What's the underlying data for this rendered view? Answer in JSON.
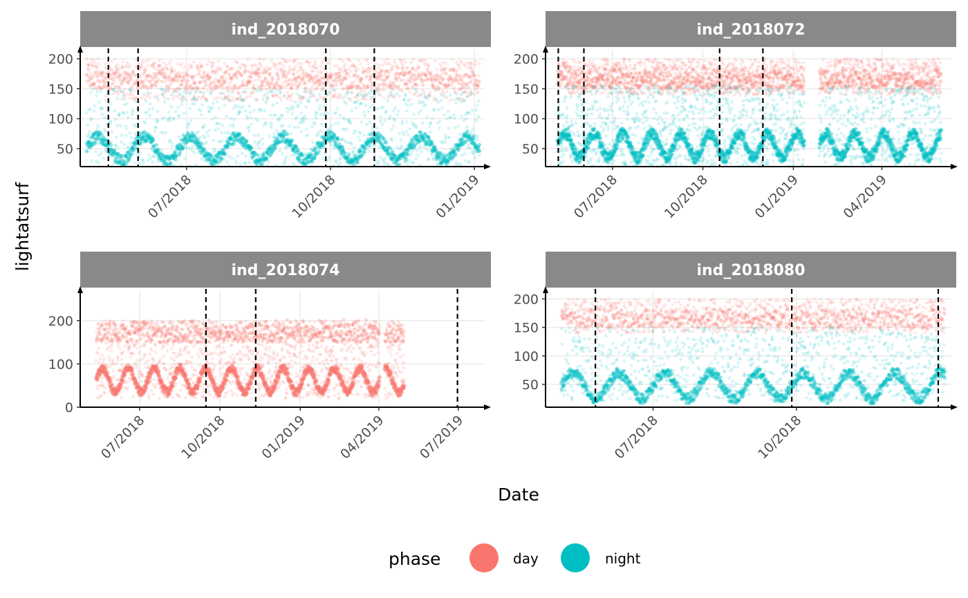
{
  "chart_data": {
    "type": "scatter",
    "xlabel": "Date",
    "ylabel": "lightatsurf",
    "colors": {
      "day": "#F8766D",
      "night": "#00BFC4",
      "strip_bg": "#898989",
      "vline": "#000000",
      "grid": "#ebebeb"
    },
    "legend": {
      "title": "phase",
      "position": "bottom",
      "entries": [
        {
          "key": "day",
          "label": "day"
        },
        {
          "key": "night",
          "label": "night"
        }
      ]
    },
    "panels": [
      {
        "id": "ind_2018070",
        "title": "ind_2018070",
        "xlim": [
          "2018-04-24",
          "2019-01-08"
        ],
        "ylim": [
          20,
          215
        ],
        "x_ticks": [
          "2018-07-01",
          "2018-10-01",
          "2019-01-01"
        ],
        "x_tick_labels": [
          "07/2018",
          "10/2018",
          "01/2019"
        ],
        "y_ticks": [
          50,
          100,
          150,
          200
        ],
        "y_tick_labels": [
          "50",
          "100",
          "150",
          "200"
        ],
        "vlines": [
          "2018-05-12",
          "2018-05-31",
          "2018-09-28",
          "2018-10-29"
        ],
        "series": [
          {
            "phase": "day",
            "start": "2018-04-28",
            "end": "2019-01-04",
            "band": [
              130,
              200
            ],
            "dense_until": "2018-05-05",
            "dense_band": [
              160,
              200
            ]
          },
          {
            "phase": "night",
            "start": "2018-04-28",
            "end": "2019-01-04",
            "band": [
              20,
              150
            ],
            "baseline": [
              30,
              70
            ]
          }
        ]
      },
      {
        "id": "ind_2018072",
        "title": "ind_2018072",
        "xlim": [
          "2018-04-24",
          "2019-06-10"
        ],
        "ylim": [
          20,
          215
        ],
        "x_ticks": [
          "2018-07-01",
          "2018-10-01",
          "2019-01-01",
          "2019-04-01"
        ],
        "x_tick_labels": [
          "07/2018",
          "10/2018",
          "01/2019",
          "04/2019"
        ],
        "y_ticks": [
          50,
          100,
          150,
          200
        ],
        "y_tick_labels": [
          "50",
          "100",
          "150",
          "200"
        ],
        "vlines": [
          "2018-05-07",
          "2018-06-02",
          "2018-10-18",
          "2018-12-01"
        ],
        "gaps": [
          [
            "2019-01-12",
            "2019-01-27"
          ]
        ],
        "series": [
          {
            "phase": "day",
            "start": "2018-05-06",
            "end": "2019-05-31",
            "band": [
              140,
              200
            ],
            "dense_until": "2018-05-15",
            "dense_band": [
              165,
              200
            ]
          },
          {
            "phase": "night",
            "start": "2018-05-06",
            "end": "2019-05-31",
            "band": [
              20,
              155
            ],
            "baseline": [
              35,
              75
            ]
          }
        ]
      },
      {
        "id": "ind_2018074",
        "title": "ind_2018074",
        "xlim": [
          "2018-04-24",
          "2019-08-01"
        ],
        "ylim": [
          0,
          270
        ],
        "x_ticks": [
          "2018-07-01",
          "2018-10-01",
          "2019-01-01",
          "2019-04-01",
          "2019-07-01"
        ],
        "x_tick_labels": [
          "07/2018",
          "10/2018",
          "01/2019",
          "04/2019",
          "07/2019"
        ],
        "y_ticks": [
          0,
          100,
          200
        ],
        "y_tick_labels": [
          "0",
          "100",
          "200"
        ],
        "vlines": [
          "2018-09-15",
          "2018-11-11",
          "2019-06-30"
        ],
        "gaps": [
          [
            "2019-04-02",
            "2019-04-07"
          ]
        ],
        "series": [
          {
            "phase": "day",
            "start": "2018-05-12",
            "end": "2019-04-30",
            "band": [
              20,
              200
            ],
            "top_band": [
              150,
              205
            ],
            "baseline": [
              35,
              90
            ]
          }
        ]
      },
      {
        "id": "ind_2018080",
        "title": "ind_2018080",
        "xlim": [
          "2018-04-23",
          "2019-01-08"
        ],
        "ylim": [
          10,
          215
        ],
        "x_ticks": [
          "2018-07-01",
          "2018-10-01"
        ],
        "x_tick_labels": [
          "07/2018",
          "10/2018"
        ],
        "y_ticks": [
          50,
          100,
          150,
          200
        ],
        "y_tick_labels": [
          "50",
          "100",
          "150",
          "200"
        ],
        "vlines": [
          "2018-05-25",
          "2018-09-28",
          "2018-12-31"
        ],
        "series": [
          {
            "phase": "day",
            "start": "2018-05-03",
            "end": "2019-01-04",
            "band": [
              140,
              200
            ],
            "dense_until": "2018-05-10",
            "dense_band": [
              160,
              200
            ]
          },
          {
            "phase": "night",
            "start": "2018-05-03",
            "end": "2019-01-04",
            "band": [
              20,
              150
            ],
            "baseline": [
              25,
              70
            ]
          }
        ]
      }
    ]
  }
}
